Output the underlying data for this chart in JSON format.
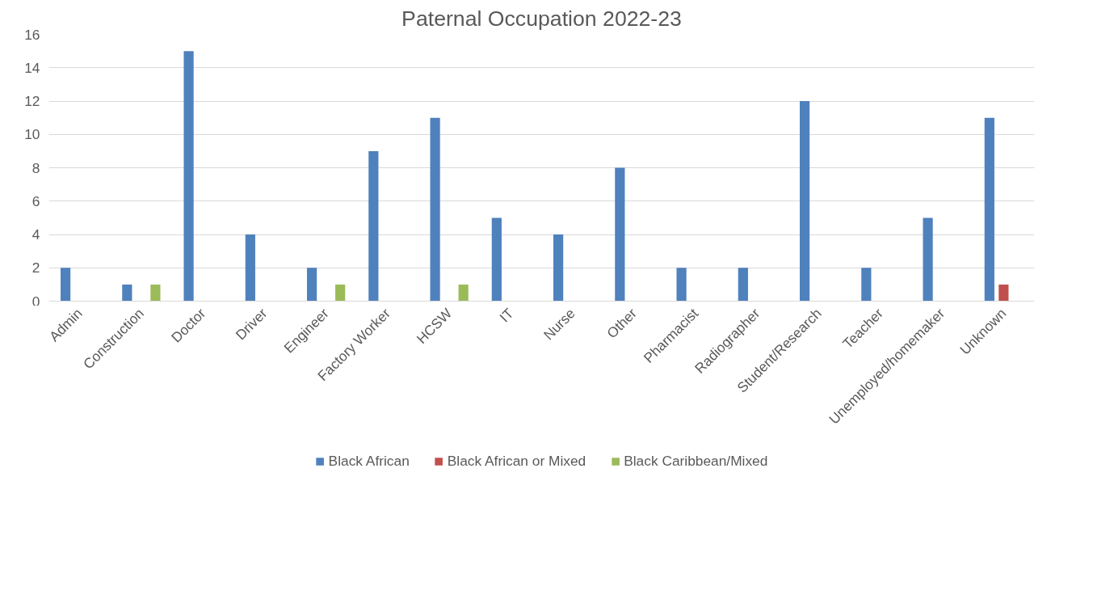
{
  "chart_data": {
    "type": "bar",
    "title": "Paternal Occupation 2022-23",
    "categories": [
      "Admin",
      "Construction",
      "Doctor",
      "Driver",
      "Engineer",
      "Factory Worker",
      "HCSW",
      "IT",
      "Nurse",
      "Other",
      "Pharmacist",
      "Radiographer",
      "Student/Research",
      "Teacher",
      "Unemployed/homemaker",
      "Unknown"
    ],
    "series": [
      {
        "name": "Black African",
        "color": "#4f81bd",
        "values": [
          2,
          1,
          15,
          4,
          2,
          9,
          11,
          5,
          4,
          8,
          2,
          2,
          12,
          2,
          5,
          11
        ]
      },
      {
        "name": "Black African or Mixed",
        "color": "#c0504d",
        "values": [
          null,
          null,
          null,
          null,
          null,
          null,
          null,
          null,
          null,
          null,
          null,
          null,
          null,
          null,
          null,
          1
        ]
      },
      {
        "name": "Black Caribbean/Mixed",
        "color": "#9bbb59",
        "values": [
          null,
          1,
          null,
          null,
          1,
          null,
          1,
          null,
          null,
          null,
          null,
          null,
          null,
          null,
          null,
          null
        ]
      }
    ],
    "ylim": [
      0,
      16
    ],
    "yticks": [
      0,
      2,
      4,
      6,
      8,
      10,
      12,
      14,
      16
    ],
    "grid": "y",
    "legend": "bottom"
  }
}
